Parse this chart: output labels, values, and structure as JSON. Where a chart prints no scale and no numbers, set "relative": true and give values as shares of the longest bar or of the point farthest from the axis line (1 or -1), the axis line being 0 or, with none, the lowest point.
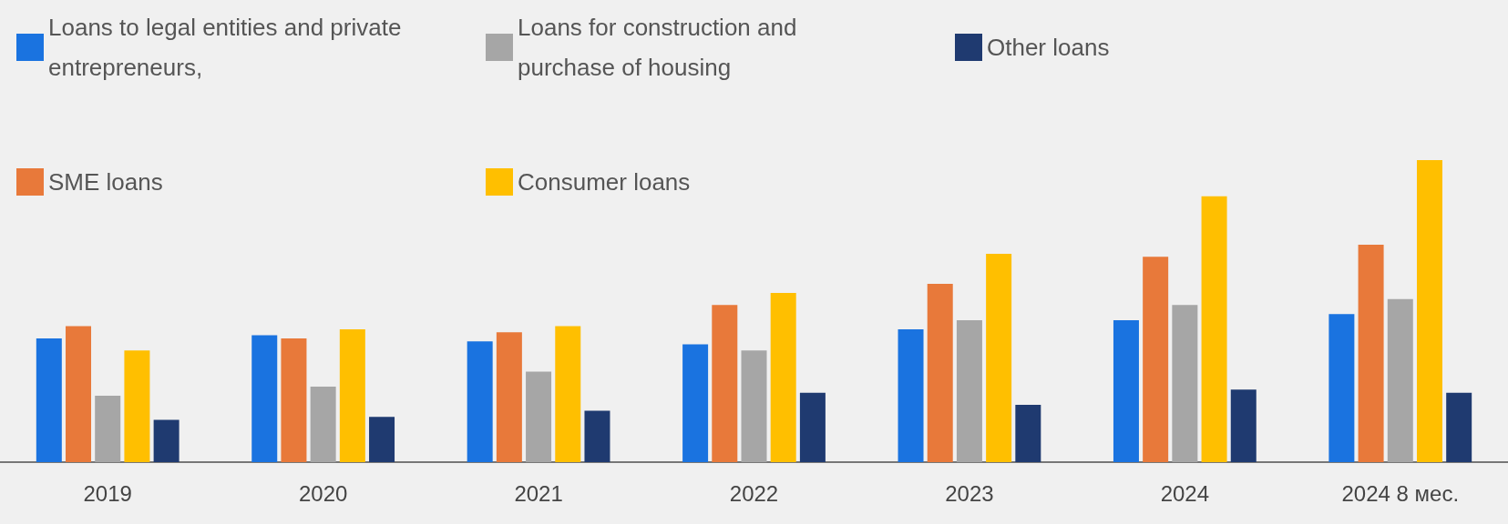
{
  "chart_data": {
    "type": "bar",
    "relative": true,
    "legend": "top",
    "categories": [
      "2019",
      "2020",
      "2021",
      "2022",
      "2023",
      "2024",
      "2024 8 мес."
    ],
    "series": [
      {
        "name": "Loans to legal entities and private entrepreneurs,",
        "color": "#1a73e0",
        "values": [
          0.41,
          0.42,
          0.4,
          0.39,
          0.44,
          0.47,
          0.49
        ]
      },
      {
        "name": "SME loans",
        "color": "#e8793a",
        "values": [
          0.45,
          0.41,
          0.43,
          0.52,
          0.59,
          0.68,
          0.72
        ]
      },
      {
        "name": "Loans for construction and purchase of housing",
        "color": "#a6a6a6",
        "values": [
          0.22,
          0.25,
          0.3,
          0.37,
          0.47,
          0.52,
          0.54
        ]
      },
      {
        "name": "Consumer loans",
        "color": "#ffbf00",
        "values": [
          0.37,
          0.44,
          0.45,
          0.56,
          0.69,
          0.88,
          1
        ]
      },
      {
        "name": "Other loans",
        "color": "#1f3a70",
        "values": [
          0.14,
          0.15,
          0.17,
          0.23,
          0.19,
          0.24,
          0.23
        ]
      }
    ]
  }
}
